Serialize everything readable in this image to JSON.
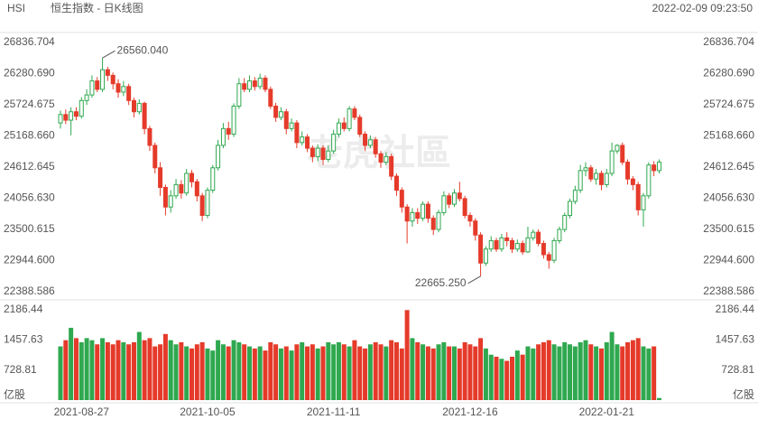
{
  "header": {
    "symbol": "HSI",
    "name": "恒生指数 - 日K线图",
    "timestamp": "2022-02-09 09:23:50"
  },
  "chart_data": {
    "type": "candlestick",
    "watermark": "老虎社區",
    "up_color": "#2fa84f",
    "down_color": "#e53a2a",
    "categories": [
      null,
      null,
      null,
      null,
      "2021-08-27",
      null,
      null,
      null,
      null,
      null,
      null,
      null,
      null,
      null,
      null,
      null,
      null,
      null,
      null,
      null,
      null,
      null,
      null,
      null,
      null,
      null,
      null,
      null,
      "2021-10-05",
      null,
      null,
      null,
      null,
      null,
      null,
      null,
      null,
      null,
      null,
      null,
      null,
      null,
      null,
      null,
      null,
      null,
      null,
      null,
      null,
      null,
      null,
      null,
      "2021-11-11",
      null,
      null,
      null,
      null,
      null,
      null,
      null,
      null,
      null,
      null,
      null,
      null,
      null,
      null,
      null,
      null,
      null,
      null,
      null,
      null,
      null,
      null,
      null,
      null,
      null,
      "2021-12-16",
      null,
      null,
      null,
      null,
      null,
      null,
      null,
      null,
      null,
      null,
      null,
      null,
      null,
      null,
      null,
      null,
      null,
      null,
      null,
      null,
      null,
      null,
      null,
      null,
      null,
      "2022-01-21",
      null,
      null,
      null,
      null,
      null,
      null,
      null,
      null,
      null,
      null
    ],
    "open": [
      25400,
      25550,
      25450,
      25600,
      25520,
      25800,
      25900,
      26150,
      26000,
      26350,
      26250,
      26100,
      25950,
      26050,
      25800,
      25600,
      25750,
      25300,
      25000,
      24600,
      24250,
      23900,
      24100,
      24300,
      24150,
      24500,
      24350,
      24100,
      23750,
      24200,
      24600,
      25000,
      25300,
      25200,
      25700,
      26100,
      26000,
      26150,
      26050,
      26200,
      26000,
      25700,
      25500,
      25600,
      25300,
      25400,
      25050,
      25150,
      24950,
      24800,
      24950,
      24750,
      24900,
      25200,
      25400,
      25300,
      25650,
      25500,
      25200,
      25000,
      25100,
      24850,
      24700,
      24800,
      24450,
      24200,
      23900,
      23650,
      23800,
      23700,
      23950,
      23700,
      23500,
      23800,
      24100,
      23950,
      24150,
      24050,
      23750,
      23650,
      23400,
      22900,
      23150,
      23300,
      23150,
      23350,
      23300,
      23150,
      23250,
      23100,
      23350,
      23450,
      23250,
      23050,
      22950,
      23300,
      23500,
      23750,
      24000,
      24200,
      24550,
      24600,
      24400,
      24500,
      24300,
      24500,
      24900,
      25000,
      24700,
      24400,
      24300,
      23850,
      24100,
      24650,
      24550
    ],
    "high": [
      25620,
      25640,
      25680,
      25680,
      25860,
      26000,
      26250,
      26220,
      26560.04,
      26400,
      26300,
      26180,
      26150,
      26100,
      25850,
      25820,
      25780,
      25350,
      25050,
      24700,
      24300,
      24200,
      24400,
      24380,
      24580,
      24560,
      24400,
      24150,
      24250,
      24650,
      25100,
      25400,
      25420,
      25750,
      26200,
      26200,
      26250,
      26220,
      26280,
      26250,
      26050,
      25760,
      25680,
      25650,
      25480,
      25450,
      25250,
      25200,
      25000,
      25020,
      25000,
      25000,
      25280,
      25480,
      25500,
      25700,
      25700,
      25550,
      25250,
      25180,
      25150,
      24900,
      24880,
      24850,
      24500,
      24250,
      23950,
      23880,
      23880,
      24000,
      24000,
      23750,
      23850,
      24180,
      24150,
      24220,
      24350,
      24100,
      23800,
      23700,
      23450,
      23200,
      23380,
      23350,
      23420,
      23450,
      23350,
      23320,
      23300,
      23550,
      23500,
      23500,
      23300,
      23100,
      23350,
      23550,
      23800,
      24050,
      24280,
      24650,
      24700,
      24650,
      24580,
      24550,
      24580,
      25050,
      25020,
      25050,
      24750,
      24450,
      24350,
      24150,
      24700,
      24720,
      24750
    ],
    "low": [
      25300,
      25380,
      25180,
      25450,
      25480,
      25720,
      25850,
      25950,
      25950,
      26150,
      26000,
      25850,
      25880,
      25720,
      25500,
      25550,
      25200,
      24900,
      24500,
      24100,
      23750,
      23800,
      24050,
      24050,
      24100,
      24250,
      24000,
      23650,
      23700,
      24150,
      24550,
      24950,
      25100,
      25150,
      25650,
      25950,
      25950,
      25980,
      26000,
      25950,
      25650,
      25420,
      25450,
      25200,
      25250,
      24950,
      25000,
      24880,
      24700,
      24720,
      24650,
      24700,
      24850,
      25150,
      25250,
      25250,
      25450,
      25150,
      24900,
      24950,
      24780,
      24600,
      24650,
      24380,
      24100,
      23800,
      23250,
      23550,
      23600,
      23650,
      23620,
      23400,
      23450,
      23750,
      23880,
      23900,
      24000,
      23700,
      23550,
      23300,
      22665.25,
      22850,
      23100,
      23100,
      23100,
      23200,
      23080,
      23100,
      23050,
      23080,
      23300,
      23200,
      22980,
      22800,
      22900,
      23250,
      23450,
      23700,
      23950,
      24150,
      24450,
      24350,
      24300,
      24200,
      24250,
      24450,
      24850,
      24650,
      24300,
      24200,
      23750,
      23550,
      24050,
      24450,
      24500
    ],
    "close": [
      25550,
      25450,
      25600,
      25520,
      25800,
      25900,
      26150,
      26000,
      26350,
      26250,
      26100,
      25950,
      26050,
      25800,
      25600,
      25750,
      25300,
      25000,
      24600,
      24250,
      23900,
      24100,
      24300,
      24150,
      24500,
      24350,
      24100,
      23750,
      24200,
      24600,
      25000,
      25300,
      25200,
      25700,
      26100,
      26000,
      26150,
      26050,
      26200,
      26000,
      25700,
      25500,
      25600,
      25300,
      25400,
      25050,
      25150,
      24950,
      24800,
      24950,
      24750,
      24900,
      25200,
      25400,
      25300,
      25650,
      25500,
      25200,
      25000,
      25100,
      24850,
      24700,
      24800,
      24450,
      24200,
      23900,
      23650,
      23800,
      23700,
      23950,
      23700,
      23500,
      23800,
      24100,
      23950,
      24150,
      24050,
      23750,
      23650,
      23400,
      22900,
      23150,
      23300,
      23150,
      23350,
      23300,
      23150,
      23250,
      23100,
      23350,
      23450,
      23250,
      23050,
      22950,
      23300,
      23500,
      23750,
      24000,
      24200,
      24550,
      24600,
      24400,
      24500,
      24300,
      24500,
      24900,
      25000,
      24700,
      24400,
      24300,
      23850,
      24100,
      24650,
      24550,
      24700
    ],
    "volume": [
      1300,
      1450,
      1750,
      1500,
      1400,
      1500,
      1450,
      1350,
      1500,
      1400,
      1350,
      1450,
      1400,
      1350,
      1400,
      1650,
      1450,
      1500,
      1300,
      1350,
      1600,
      1450,
      1350,
      1400,
      1300,
      1250,
      1350,
      1400,
      1250,
      1200,
      1450,
      1350,
      1300,
      1450,
      1400,
      1350,
      1300,
      1250,
      1300,
      1200,
      1400,
      1350,
      1250,
      1300,
      1200,
      1350,
      1400,
      1300,
      1350,
      1250,
      1300,
      1400,
      1350,
      1400,
      1350,
      1300,
      1450,
      1300,
      1250,
      1350,
      1400,
      1350,
      1300,
      1450,
      1400,
      1250,
      2180,
      1500,
      1400,
      1350,
      1300,
      1250,
      1350,
      1400,
      1300,
      1300,
      1250,
      1400,
      1350,
      1300,
      1500,
      1250,
      1100,
      1050,
      1000,
      950,
      1050,
      1200,
      1100,
      1300,
      1250,
      1350,
      1400,
      1450,
      1350,
      1300,
      1400,
      1350,
      1300,
      1400,
      1450,
      1350,
      1300,
      1250,
      1400,
      1650,
      1350,
      1300,
      1400,
      1450,
      1500,
      1300,
      1250,
      1300,
      50
    ],
    "ylim": [
      22388.586,
      26836.704
    ],
    "yticks": [
      22388.586,
      {
        "value": 22944.6,
        "label": "22944.600"
      },
      23500.615,
      {
        "value": 24056.63,
        "label": "24056.630"
      },
      24612.645,
      {
        "value": 25168.66,
        "label": "25168.660"
      },
      25724.675,
      {
        "value": 26280.69,
        "label": "26280.690"
      },
      26836.704
    ],
    "volume_ylim": [
      0,
      2186.44
    ],
    "volume_yticks": [
      {
        "value": 0,
        "label": "亿股"
      },
      728.81,
      1457.63,
      2186.44
    ],
    "high_label": {
      "value": 26560.04,
      "label": "26560.040"
    },
    "low_label": {
      "value": 22665.25,
      "label": "22665.250"
    }
  }
}
